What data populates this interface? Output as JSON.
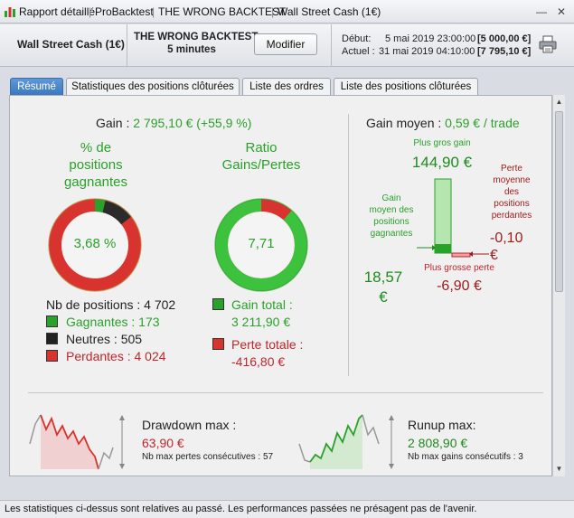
{
  "titlebar": {
    "items": [
      "Rapport détaillé",
      "ProBacktest",
      "THE WRONG BACKTEST",
      "Wall Street Cash (1€)"
    ]
  },
  "header": {
    "instrument": "Wall Street Cash (1€)",
    "backtest_name": "THE WRONG BACKTEST",
    "timeframe": "5 minutes",
    "modify_label": "Modifier",
    "start_label": "Début:",
    "start_date": "5 mai 2019 23:00:00",
    "start_value": "[5 000,00 €]",
    "current_label": "Actuel :",
    "current_date": "31 mai 2019 04:10:00",
    "current_value": "[7 795,10 €]"
  },
  "tabs": [
    "Résumé",
    "Statistiques des positions clôturées",
    "Liste des ordres",
    "Liste des positions clôturées"
  ],
  "summary": {
    "gain_label": "Gain :",
    "gain_value": "2 795,10 € (+55,9 %)",
    "pct_title_1": "% de",
    "pct_title_2": "positions",
    "pct_title_3": "gagnantes",
    "pct_value": "3,68 %",
    "ratio_title_1": "Ratio",
    "ratio_title_2": "Gains/Pertes",
    "ratio_value": "7,71",
    "nb_positions": "Nb de positions : 4 702",
    "gagnantes": "Gagnantes : 173",
    "neutres": "Neutres : 505",
    "perdantes": "Perdantes : 4 024",
    "gain_total_label": "Gain total :",
    "gain_total_value": "3 211,90 €",
    "perte_totale_label": "Perte totale :",
    "perte_totale_value": "-416,80 €",
    "gain_moyen_label": "Gain moyen :",
    "gain_moyen_value": "0,59 € / trade",
    "plus_gros_gain_label": "Plus gros gain",
    "plus_gros_gain_value": "144,90 €",
    "gain_moyen_pos_1": "Gain",
    "gain_moyen_pos_2": "moyen des",
    "gain_moyen_pos_3": "positions",
    "gain_moyen_pos_4": "gagnantes",
    "gain_moyen_pos_value_1": "18,57",
    "gain_moyen_pos_value_2": "€",
    "perte_moy_1": "Perte",
    "perte_moy_2": "moyenne",
    "perte_moy_3": "des",
    "perte_moy_4": "positions",
    "perte_moy_5": "perdantes",
    "perte_moy_value_1": "-0,10",
    "perte_moy_value_2": "€",
    "plus_grosse_perte_label": "Plus grosse perte",
    "plus_grosse_perte_value": "-6,90 €",
    "drawdown_label": "Drawdown max :",
    "drawdown_value": "63,90 €",
    "drawdown_sub": "Nb max pertes consécutives : 57",
    "runup_label": "Runup max:",
    "runup_value": "2 808,90 €",
    "runup_sub": "Nb max gains consécutifs : 3"
  },
  "rings": {
    "winners_pct": 3.68,
    "neutral_pct": 10.74,
    "gains_share": 88.5
  },
  "colors": {
    "gain": "#2aa12a",
    "loss": "#d8332e",
    "neutral": "#2b2b2b"
  },
  "statusbar": {
    "text": "Les statistiques ci-dessus sont relatives au passé. Les performances passées ne présagent pas de l'avenir."
  }
}
